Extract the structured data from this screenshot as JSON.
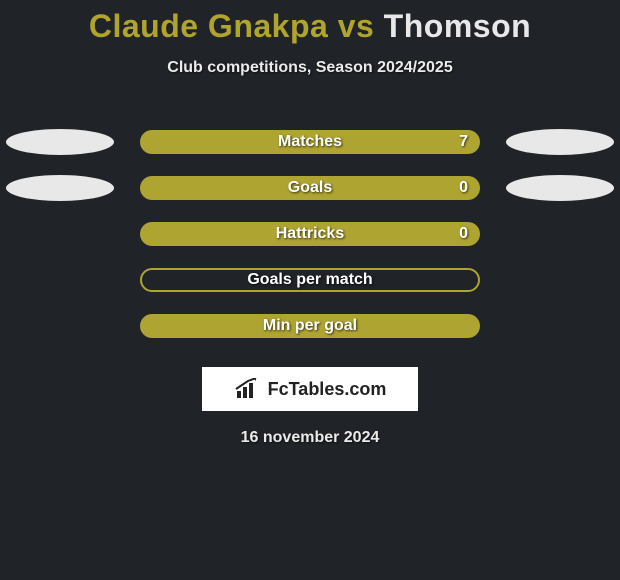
{
  "title": {
    "player1": "Claude Gnakpa",
    "vs": "vs",
    "player2": "Thomson",
    "player1_color": "#b0a42c",
    "vs_color": "#b0a42c",
    "player2_color": "#e8e8e8",
    "fontsize": 32
  },
  "subtitle": "Club competitions, Season 2024/2025",
  "background_color": "#202428",
  "bar_color_fill": "#aea431",
  "bar_color_outline": "#aea431",
  "ellipse_color": "#e8e8e8",
  "stats": [
    {
      "label": "Matches",
      "value": "7",
      "fill_pct": 100,
      "show_value": true,
      "show_ellipses": true,
      "left_ellipse": true,
      "right_ellipse": true,
      "outline_only": false
    },
    {
      "label": "Goals",
      "value": "0",
      "fill_pct": 100,
      "show_value": true,
      "show_ellipses": true,
      "left_ellipse": true,
      "right_ellipse": true,
      "outline_only": false
    },
    {
      "label": "Hattricks",
      "value": "0",
      "fill_pct": 100,
      "show_value": true,
      "show_ellipses": false,
      "left_ellipse": false,
      "right_ellipse": false,
      "outline_only": false
    },
    {
      "label": "Goals per match",
      "value": "",
      "fill_pct": 0,
      "show_value": false,
      "show_ellipses": false,
      "left_ellipse": false,
      "right_ellipse": false,
      "outline_only": true
    },
    {
      "label": "Min per goal",
      "value": "",
      "fill_pct": 100,
      "show_value": false,
      "show_ellipses": false,
      "left_ellipse": false,
      "right_ellipse": false,
      "outline_only": false
    }
  ],
  "logo_text": "FcTables.com",
  "date": "16 november 2024"
}
